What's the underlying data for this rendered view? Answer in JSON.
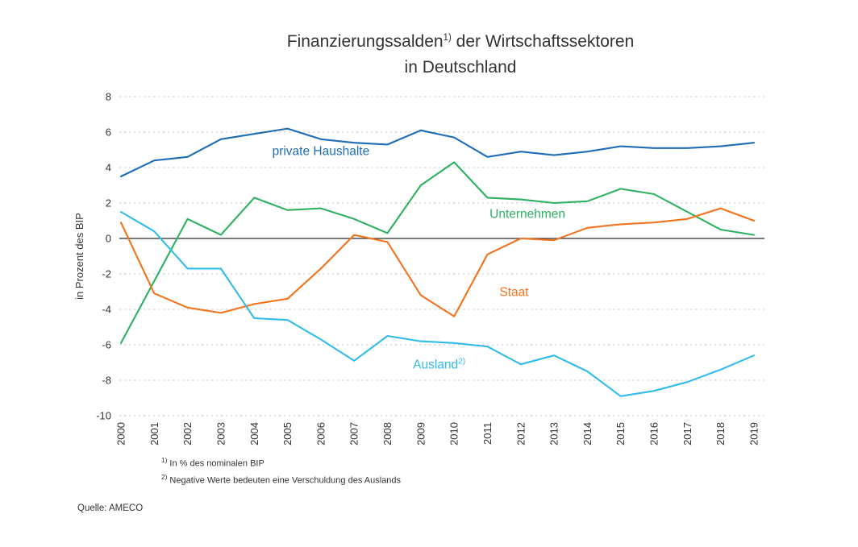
{
  "title": {
    "line1_main": "Finanzierungssalden",
    "line1_sup": "1)",
    "line1_rest": " der Wirtschaftssektoren",
    "line2": "in Deutschland"
  },
  "footnotes": [
    {
      "marker": "1)",
      "text": "In % des nominalen BIP"
    },
    {
      "marker": "2)",
      "text": "Negative Werte bedeuten eine Verschuldung des Auslands"
    }
  ],
  "source": "Quelle: AMECO",
  "chart_data": {
    "type": "line",
    "title": "Finanzierungssalden der Wirtschaftssektoren in Deutschland",
    "xlabel": "",
    "ylabel": "in Prozent des BIP",
    "ylim": [
      -10,
      8
    ],
    "yticks": [
      8,
      6,
      4,
      2,
      0,
      -2,
      -4,
      -6,
      -8,
      -10
    ],
    "grid": "dashed horizontal",
    "grid_color": "#c9c9c9",
    "zero_line_color": "#2b2b2b",
    "legend": "inline-labels",
    "categories": [
      "2000",
      "2001",
      "2002",
      "2003",
      "2004",
      "2005",
      "2006",
      "2007",
      "2008",
      "2009",
      "2010",
      "2011",
      "2012",
      "2013",
      "2014",
      "2015",
      "2016",
      "2017",
      "2018",
      "2019"
    ],
    "series": [
      {
        "id": "private-haushalte",
        "name": "private Haushalte",
        "label": "private Haushalte",
        "label_sup": "",
        "color": "#1e6cb5",
        "label_pos": {
          "x": 6.0,
          "y": 4.7
        },
        "values": [
          3.5,
          4.4,
          4.6,
          5.6,
          5.9,
          6.2,
          5.6,
          5.4,
          5.3,
          6.1,
          5.7,
          4.6,
          4.9,
          4.7,
          4.9,
          5.2,
          5.1,
          5.1,
          5.2,
          5.4
        ]
      },
      {
        "id": "unternehmen",
        "name": "Unternehmen",
        "label": "Unternehmen",
        "label_sup": "",
        "color": "#2db160",
        "label_pos": {
          "x": 12.2,
          "y": 1.15
        },
        "values": [
          -5.9,
          -2.4,
          1.1,
          0.2,
          2.3,
          1.6,
          1.7,
          1.1,
          0.3,
          3.0,
          4.3,
          2.3,
          2.2,
          2.0,
          2.1,
          2.8,
          2.5,
          1.5,
          0.5,
          0.2
        ]
      },
      {
        "id": "staat",
        "name": "Staat",
        "label": "Staat",
        "label_sup": "",
        "color": "#f3721c",
        "label_pos": {
          "x": 11.8,
          "y": -3.25
        },
        "values": [
          0.9,
          -3.1,
          -3.9,
          -4.2,
          -3.7,
          -3.4,
          -1.7,
          0.2,
          -0.2,
          -3.2,
          -4.4,
          -0.9,
          0.0,
          -0.1,
          0.6,
          0.8,
          0.9,
          1.1,
          1.7,
          1.0
        ]
      },
      {
        "id": "ausland",
        "name": "Ausland",
        "label": "Ausland",
        "label_sup": "2)",
        "color": "#30bceb",
        "label_pos": {
          "x": 9.55,
          "y": -7.35
        },
        "values": [
          1.5,
          0.4,
          -1.7,
          -1.7,
          -4.5,
          -4.6,
          -5.7,
          -6.9,
          -5.5,
          -5.8,
          -5.9,
          -6.1,
          -7.1,
          -6.6,
          -7.5,
          -8.9,
          -8.6,
          -8.1,
          -7.4,
          -6.6
        ]
      }
    ]
  }
}
